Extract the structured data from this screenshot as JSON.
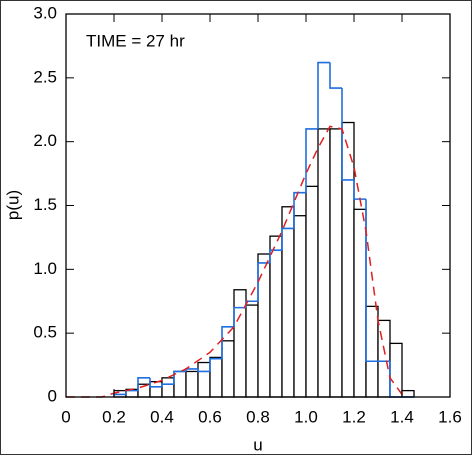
{
  "chart_data": {
    "type": "histogram",
    "annotation": "TIME = 27 hr",
    "x_label": "u",
    "y_label": "p(u)",
    "bins": [
      0.2,
      0.25,
      0.3,
      0.35,
      0.4,
      0.45,
      0.5,
      0.55,
      0.6,
      0.65,
      0.7,
      0.75,
      0.8,
      0.85,
      0.9,
      0.95,
      1.0,
      1.05,
      1.1,
      1.15,
      1.2,
      1.25,
      1.3,
      1.35,
      1.4,
      1.45
    ],
    "series": [
      {
        "color": "#000000",
        "fill": "#ffffff",
        "style": "bars",
        "values": [
          0.05,
          0.06,
          0.1,
          0.12,
          0.15,
          0.2,
          0.2,
          0.27,
          0.31,
          0.44,
          0.84,
          0.72,
          1.12,
          1.26,
          1.49,
          1.42,
          1.65,
          2.1,
          2.1,
          2.15,
          1.47,
          0.71,
          0.6,
          0.42,
          0.05
        ]
      },
      {
        "color": "#1f6fe0",
        "style": "step",
        "values": [
          0.02,
          0.05,
          0.15,
          0.08,
          0.1,
          0.2,
          0.22,
          0.2,
          0.3,
          0.55,
          0.7,
          0.75,
          1.05,
          1.15,
          1.32,
          1.6,
          2.1,
          2.62,
          2.42,
          1.7,
          1.55,
          0.28,
          0.28,
          0,
          0
        ]
      }
    ],
    "curve": {
      "color": "#e02020",
      "style": "dashed",
      "x": [
        0,
        0.15,
        0.2,
        0.3,
        0.4,
        0.5,
        0.6,
        0.7,
        0.8,
        0.9,
        1.0,
        1.05,
        1.1,
        1.15,
        1.2,
        1.25,
        1.3,
        1.35,
        1.4,
        1.42
      ],
      "y": [
        0,
        0,
        0.03,
        0.07,
        0.13,
        0.22,
        0.35,
        0.55,
        0.9,
        1.3,
        1.75,
        1.95,
        2.12,
        2.1,
        1.8,
        1.3,
        0.6,
        0.15,
        0.02,
        0
      ]
    },
    "xlim": [
      0,
      1.6
    ],
    "xticks": [
      0,
      0.2,
      0.4,
      0.6,
      0.8,
      {
        "value": 1,
        "label": "1.0"
      },
      1.2,
      1.4,
      1.6
    ],
    "ylim": [
      0,
      3
    ],
    "yticks": [
      0,
      0.5,
      {
        "value": 1,
        "label": "1.0"
      },
      1.5,
      {
        "value": 2,
        "label": "2.0"
      },
      2.5,
      {
        "value": 3,
        "label": "3.0"
      }
    ]
  }
}
